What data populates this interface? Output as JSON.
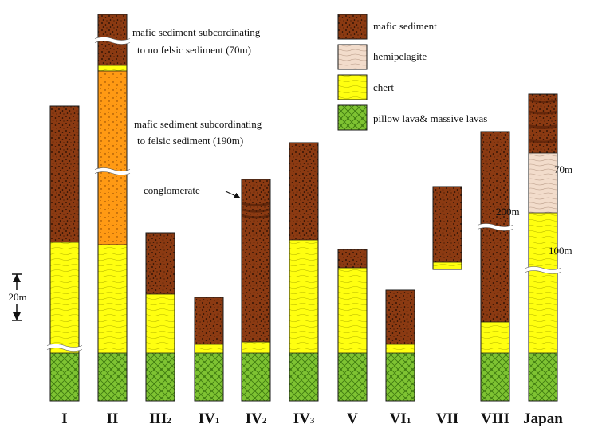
{
  "legend": {
    "items": [
      {
        "key": "mafic",
        "label": "mafic sediment"
      },
      {
        "key": "hemi",
        "label": "hemipelagite"
      },
      {
        "key": "chert",
        "label": "chert"
      },
      {
        "key": "pillow",
        "label": "pillow lava& massive lavas"
      }
    ]
  },
  "annotations": {
    "upper_note_line1": "mafic sediment subcordinating",
    "upper_note_line2": "to no felsic sediment (70m)",
    "middle_note_line1": "mafic sediment subcordinating",
    "middle_note_line2": "to felsic sediment (190m)",
    "conglomerate": "conglomerate",
    "label_200m": "200m",
    "label_70m": "70m",
    "label_100m": "100m"
  },
  "scale_bar": {
    "label": "20m",
    "meters": 20
  },
  "columns": [
    {
      "id": "I",
      "label": "I",
      "sub": ""
    },
    {
      "id": "II",
      "label": "II",
      "sub": ""
    },
    {
      "id": "III2",
      "label": "III",
      "sub": "2"
    },
    {
      "id": "IV1",
      "label": "IV",
      "sub": "1"
    },
    {
      "id": "IV2",
      "label": "IV",
      "sub": "2"
    },
    {
      "id": "IV3",
      "label": "IV",
      "sub": "3"
    },
    {
      "id": "V",
      "label": "V",
      "sub": ""
    },
    {
      "id": "VI1",
      "label": "VI",
      "sub": "1"
    },
    {
      "id": "VII",
      "label": "VII",
      "sub": ""
    },
    {
      "id": "VIII",
      "label": "VIII",
      "sub": ""
    },
    {
      "id": "Japan",
      "label": "Japan",
      "sub": ""
    }
  ],
  "colors": {
    "mafic": "#8b3a12",
    "felsic": "#ff9a14",
    "hemi": "#f2dccb",
    "chert": "#ffff10",
    "pillow": "#7ec332",
    "outline": "#1a1a1a"
  }
}
